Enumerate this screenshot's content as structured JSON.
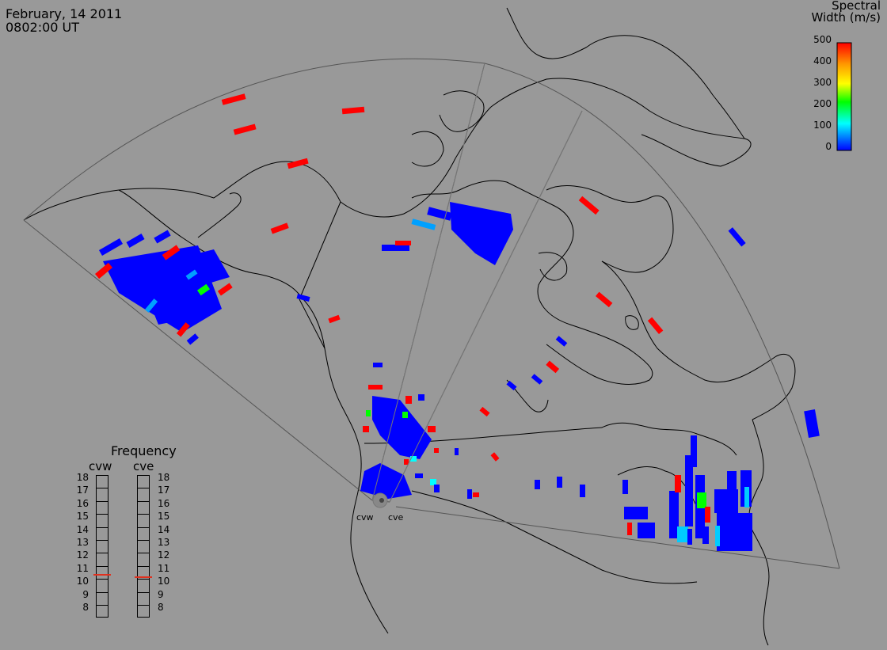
{
  "header": {
    "date": "February, 14 2011",
    "time": "0802:00 UT"
  },
  "colorbar": {
    "title_line1": "Spectral",
    "title_line2": "Width (m/s)",
    "ticks": [
      "500",
      "400",
      "300",
      "200",
      "100",
      "0"
    ],
    "colors": [
      "#ff0000",
      "#ffa500",
      "#ffff00",
      "#00ff00",
      "#00ffff",
      "#0000ff"
    ]
  },
  "radars": [
    {
      "code": "cvw",
      "label": "cvw"
    },
    {
      "code": "cve",
      "label": "cve"
    }
  ],
  "frequency": {
    "title": "Frequency",
    "ticks": [
      "18",
      "17",
      "16",
      "15",
      "14",
      "13",
      "12",
      "11",
      "10",
      "9",
      "8"
    ],
    "cvw_value": 10.8,
    "cve_value": 10.6
  },
  "colors": {
    "background": "#999999",
    "scatter_low": "#0000ff",
    "scatter_high": "#ff0000"
  }
}
